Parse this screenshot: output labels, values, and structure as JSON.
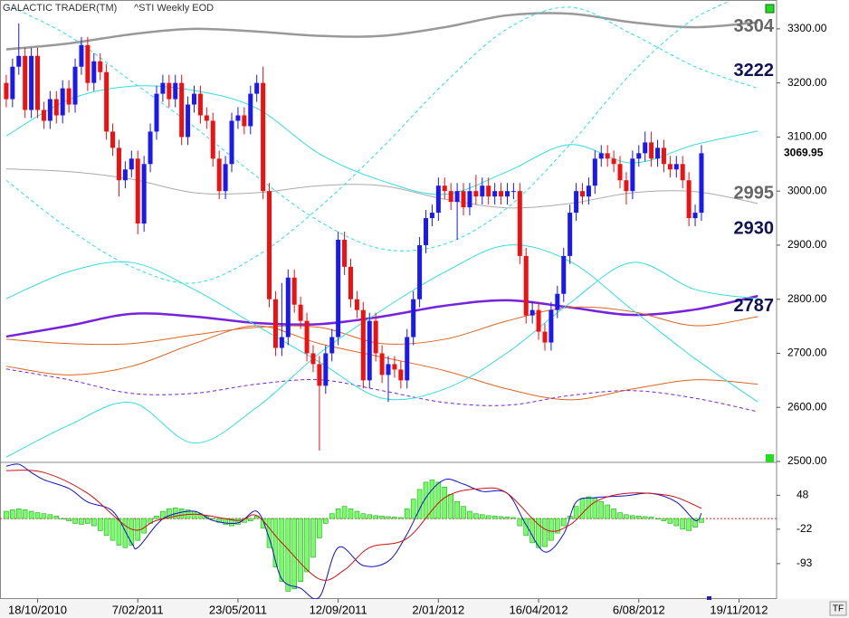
{
  "chart_data": [
    {
      "type": "candlestick",
      "title": "GALACTIC TRADER(TM)",
      "subtitle": "^STI Weekly EOD",
      "xlim": [
        -1,
        123
      ],
      "ylim": [
        2500,
        3350
      ],
      "yticks": [
        {
          "value": 2500,
          "label": "2500.00"
        },
        {
          "value": 2600,
          "label": "2600.00"
        },
        {
          "value": 2700,
          "label": "2700.00"
        },
        {
          "value": 2800,
          "label": "2800.00"
        },
        {
          "value": 2900,
          "label": "2900.00"
        },
        {
          "value": 3000,
          "label": "3000.00"
        },
        {
          "value": 3100,
          "label": "3100.00"
        },
        {
          "value": 3200,
          "label": "3200.00"
        },
        {
          "value": 3300,
          "label": "3300.00"
        }
      ],
      "up_color": "#1a1aee",
      "down_color": "#ee1111",
      "open": [
        3200,
        3170,
        3230,
        3250,
        3150,
        3250,
        3150,
        3130,
        3170,
        3140,
        3190,
        3160,
        3230,
        3270,
        3200,
        3240,
        3220,
        3110,
        3080,
        3020,
        3040,
        3060,
        2940,
        3050,
        3110,
        3180,
        3200,
        3170,
        3200,
        3100,
        3160,
        3180,
        3140,
        3130,
        3060,
        3000,
        3050,
        3130,
        3140,
        3120,
        3180,
        3200,
        3000,
        2800,
        2710,
        2730,
        2840,
        2790,
        2760,
        2700,
        2680,
        2640,
        2700,
        2730,
        2910,
        2860,
        2800,
        2780,
        2650,
        2760,
        2700,
        2660,
        2680,
        2670,
        2650,
        2730,
        2800,
        2900,
        2950,
        2960,
        3010,
        3000,
        2980,
        3000,
        2970,
        3000,
        2990,
        3010,
        2990,
        3000,
        2990,
        3000,
        3000,
        2880,
        2770,
        2780,
        2740,
        2720,
        2780,
        2810,
        2880,
        2960,
        3000,
        2990,
        3010,
        3060,
        3070,
        3060,
        3050,
        3020,
        3000,
        3060,
        3070,
        3090,
        3060,
        3080,
        3050,
        3040,
        3050,
        3020,
        2950,
        2960
      ],
      "high": [
        3215,
        3245,
        3310,
        3265,
        3265,
        3265,
        3165,
        3185,
        3185,
        3205,
        3205,
        3245,
        3285,
        3285,
        3255,
        3255,
        3235,
        3125,
        3095,
        3055,
        3075,
        3075,
        3065,
        3125,
        3195,
        3215,
        3215,
        3215,
        3215,
        3175,
        3195,
        3195,
        3155,
        3145,
        3075,
        3065,
        3145,
        3155,
        3155,
        3195,
        3215,
        3230,
        3015,
        2815,
        2830,
        2855,
        2855,
        2805,
        2775,
        2715,
        2695,
        2715,
        2745,
        2925,
        2925,
        2875,
        2815,
        2795,
        2775,
        2775,
        2715,
        2695,
        2695,
        2685,
        2745,
        2815,
        2915,
        2965,
        2975,
        3025,
        3025,
        3015,
        3015,
        3015,
        3015,
        3030,
        3025,
        3025,
        3015,
        3015,
        3015,
        3015,
        3015,
        2895,
        2795,
        2795,
        2755,
        2795,
        2825,
        2895,
        2975,
        3015,
        3015,
        3025,
        3075,
        3085,
        3085,
        3075,
        3065,
        3035,
        3075,
        3085,
        3110,
        3110,
        3095,
        3095,
        3065,
        3065,
        3065,
        3035,
        2975,
        3085
      ],
      "low": [
        3155,
        3155,
        3215,
        3135,
        3135,
        3135,
        3115,
        3115,
        3125,
        3125,
        3145,
        3145,
        3215,
        3185,
        3185,
        3205,
        3095,
        3065,
        2990,
        3005,
        3025,
        2920,
        2925,
        3035,
        3095,
        3165,
        3155,
        3155,
        3085,
        3085,
        3145,
        3125,
        3115,
        3045,
        2985,
        2985,
        3035,
        3115,
        3105,
        3105,
        3165,
        2985,
        2785,
        2695,
        2695,
        2715,
        2775,
        2745,
        2685,
        2665,
        2520,
        2625,
        2685,
        2715,
        2845,
        2785,
        2765,
        2635,
        2635,
        2685,
        2645,
        2610,
        2655,
        2635,
        2635,
        2715,
        2785,
        2885,
        2935,
        2945,
        2985,
        2965,
        2910,
        2955,
        2955,
        2975,
        2975,
        2975,
        2975,
        2975,
        2975,
        2985,
        2865,
        2755,
        2755,
        2725,
        2705,
        2705,
        2765,
        2795,
        2865,
        2945,
        2975,
        2975,
        2995,
        3045,
        3045,
        3035,
        3005,
        2975,
        2985,
        3045,
        3055,
        3045,
        3045,
        3035,
        3025,
        3025,
        3005,
        2935,
        2935,
        2945
      ],
      "close": [
        3170,
        3230,
        3250,
        3150,
        3250,
        3150,
        3130,
        3170,
        3140,
        3190,
        3160,
        3230,
        3270,
        3200,
        3240,
        3220,
        3110,
        3080,
        3020,
        3040,
        3060,
        2940,
        3050,
        3110,
        3180,
        3200,
        3170,
        3200,
        3100,
        3160,
        3180,
        3140,
        3130,
        3060,
        3000,
        3050,
        3130,
        3140,
        3120,
        3180,
        3200,
        3000,
        2800,
        2710,
        2730,
        2840,
        2790,
        2760,
        2700,
        2680,
        2640,
        2700,
        2730,
        2910,
        2860,
        2800,
        2780,
        2650,
        2760,
        2700,
        2660,
        2680,
        2670,
        2650,
        2730,
        2800,
        2900,
        2950,
        2960,
        3010,
        3000,
        2980,
        3000,
        2970,
        3000,
        2990,
        3010,
        2990,
        3000,
        2990,
        3000,
        3000,
        2880,
        2770,
        2780,
        2740,
        2720,
        2780,
        2810,
        2880,
        2960,
        3000,
        2990,
        3010,
        3060,
        3070,
        3060,
        3050,
        3020,
        3000,
        3060,
        3070,
        3090,
        3060,
        3080,
        3050,
        3040,
        3050,
        3020,
        2950,
        2960,
        3069.95
      ],
      "overlay_x": [
        0,
        10,
        20,
        30,
        40,
        50,
        60,
        70,
        80,
        90,
        100,
        110,
        120
      ],
      "overlays": [
        {
          "color": "#999999",
          "width": 2.5,
          "dash": false,
          "values": [
            3262,
            3273,
            3290,
            3300,
            3295,
            3287,
            3287,
            3303,
            3325,
            3328,
            3312,
            3303,
            3312
          ]
        },
        {
          "color": "#aaaaaa",
          "width": 1,
          "dash": false,
          "values": [
            3041,
            3036,
            3022,
            2997,
            2997,
            3010,
            3010,
            2985,
            2969,
            2977,
            2997,
            2999,
            2977
          ]
        },
        {
          "color": "#7722dd",
          "width": 2.5,
          "dash": false,
          "values": [
            2731,
            2751,
            2773,
            2768,
            2756,
            2754,
            2768,
            2788,
            2798,
            2785,
            2771,
            2781,
            2806
          ]
        },
        {
          "color": "#dd6622",
          "width": 1,
          "dash": false,
          "values": [
            2726,
            2718,
            2718,
            2734,
            2748,
            2748,
            2718,
            2726,
            2760,
            2785,
            2777,
            2751,
            2768
          ]
        },
        {
          "color": "#dd6622",
          "width": 1,
          "dash": false,
          "values": [
            2676,
            2660,
            2676,
            2718,
            2751,
            2718,
            2693,
            2668,
            2634,
            2614,
            2634,
            2651,
            2643
          ]
        },
        {
          "color": "#7722dd",
          "width": 1,
          "dash": true,
          "values": [
            2671,
            2651,
            2626,
            2626,
            2643,
            2651,
            2631,
            2609,
            2604,
            2622,
            2631,
            2617,
            2592
          ]
        },
        {
          "color": "#33dddd",
          "width": 1,
          "dash": false,
          "values": [
            3102,
            3169,
            3194,
            3186,
            3153,
            3069,
            3019,
            2994,
            3036,
            3086,
            3052,
            3086,
            3111
          ]
        },
        {
          "color": "#33dddd",
          "width": 1,
          "dash": true,
          "values": [
            3345,
            3287,
            3203,
            3119,
            3027,
            2944,
            2893,
            2902,
            2969,
            3086,
            3220,
            3320,
            3370
          ]
        },
        {
          "color": "#33dddd",
          "width": 1,
          "dash": false,
          "values": [
            2801,
            2851,
            2868,
            2818,
            2751,
            2684,
            2617,
            2634,
            2701,
            2793,
            2868,
            2818,
            2801
          ]
        },
        {
          "color": "#33dddd",
          "width": 1,
          "dash": false,
          "values": [
            2508,
            2567,
            2609,
            2534,
            2600,
            2700,
            2780,
            2850,
            2900,
            2870,
            2780,
            2690,
            2610
          ]
        },
        {
          "color": "#33dddd",
          "width": 1,
          "dash": true,
          "values": [
            3020,
            2930,
            2860,
            2830,
            2880,
            2970,
            3080,
            3200,
            3300,
            3340,
            3290,
            3230,
            3190
          ]
        }
      ],
      "annotations": [
        {
          "value": 3304,
          "color": "#666666"
        },
        {
          "value": 3222,
          "color": "#111155"
        },
        {
          "value": 2995,
          "color": "#666666"
        },
        {
          "value": 2930,
          "color": "#111155"
        },
        {
          "value": 2787,
          "color": "#111155"
        }
      ]
    },
    {
      "type": "macd",
      "xlim": [
        -1,
        123
      ],
      "ylim": [
        -166,
        114
      ],
      "yticks": [
        48,
        -22,
        -93
      ],
      "xticks": [
        {
          "value": 5,
          "label": "18/10/2010"
        },
        {
          "value": 21,
          "label": "7/02/2011"
        },
        {
          "value": 37,
          "label": "23/05/2011"
        },
        {
          "value": 53,
          "label": "12/09/2011"
        },
        {
          "value": 69,
          "label": "2/01/2012"
        },
        {
          "value": 85,
          "label": "16/04/2012"
        },
        {
          "value": 101,
          "label": "6/08/2012"
        },
        {
          "value": 117,
          "label": "19/11/2012"
        }
      ],
      "reference_line": 0,
      "reference_color": "#dd2222",
      "histogram": {
        "color": "#77ff66",
        "edge": "#22aa22",
        "values": [
          15,
          18,
          20,
          18,
          15,
          12,
          10,
          8,
          5,
          0,
          -5,
          -10,
          -12,
          -10,
          -15,
          -25,
          -35,
          -45,
          -55,
          -60,
          -55,
          -45,
          -30,
          -10,
          5,
          15,
          20,
          22,
          20,
          18,
          15,
          10,
          5,
          0,
          -8,
          -12,
          -15,
          -12,
          -8,
          -5,
          5,
          -20,
          -60,
          -100,
          -130,
          -150,
          -145,
          -130,
          -110,
          -80,
          -40,
          -10,
          10,
          20,
          25,
          20,
          15,
          10,
          8,
          6,
          5,
          4,
          3,
          2,
          20,
          40,
          60,
          75,
          80,
          75,
          65,
          50,
          35,
          25,
          15,
          10,
          8,
          6,
          5,
          4,
          3,
          2,
          -15,
          -35,
          -50,
          -60,
          -58,
          -45,
          -30,
          -15,
          5,
          25,
          40,
          45,
          42,
          35,
          28,
          20,
          12,
          8,
          6,
          5,
          4,
          3,
          0,
          -5,
          -10,
          -15,
          -22,
          -25,
          -18,
          -8
        ]
      },
      "series": [
        {
          "color": "#1111cc",
          "x": [
            0,
            2,
            4,
            6,
            10,
            13,
            17,
            20,
            21,
            24,
            26,
            30,
            33,
            37,
            40,
            42,
            44,
            47,
            50,
            53,
            57,
            61,
            64,
            67,
            70,
            73,
            76,
            80,
            83,
            86,
            89,
            91,
            94,
            99,
            103,
            107,
            110,
            111
          ],
          "values": [
            108,
            112,
            95,
            80,
            62,
            34,
            15,
            -50,
            -60,
            -13,
            6,
            15,
            -4,
            -9,
            15,
            -41,
            -125,
            -144,
            -162,
            -60,
            -97,
            -88,
            -32,
            43,
            80,
            71,
            56,
            52,
            -13,
            -69,
            -32,
            34,
            43,
            47,
            52,
            34,
            -4,
            11
          ]
        },
        {
          "color": "#cc1111",
          "x": [
            0,
            6,
            13,
            20,
            24,
            30,
            37,
            40,
            44,
            50,
            54,
            58,
            64,
            70,
            76,
            80,
            86,
            90,
            94,
            99,
            106,
            111
          ],
          "values": [
            99,
            95,
            52,
            -22,
            -4,
            9,
            -4,
            6,
            -50,
            -125,
            -106,
            -60,
            -41,
            43,
            62,
            52,
            -22,
            -13,
            34,
            52,
            47,
            21
          ]
        }
      ]
    }
  ],
  "corner_label": "TF"
}
